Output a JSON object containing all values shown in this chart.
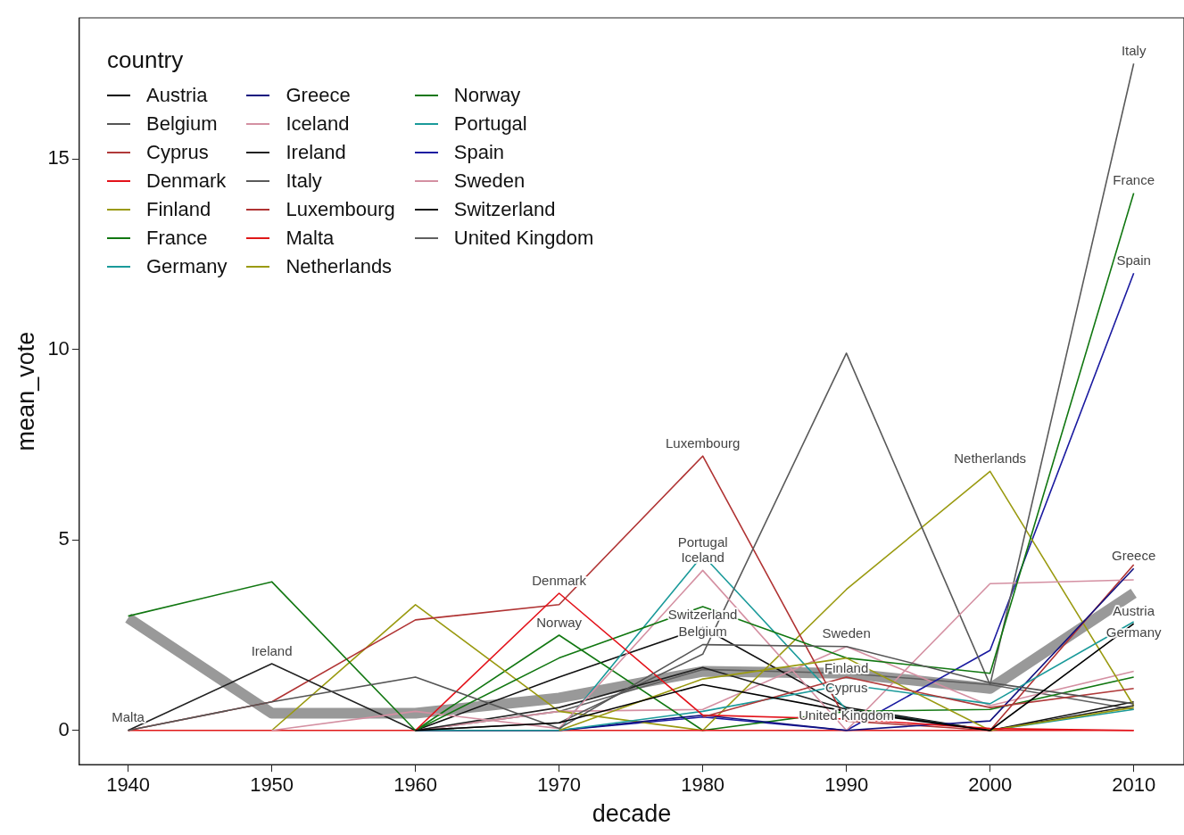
{
  "chart_data": {
    "type": "line",
    "xlabel": "decade",
    "ylabel": "mean_vote",
    "legend_title": "country",
    "legend": "top left",
    "grid": false,
    "marker": "none",
    "line_style": "solid",
    "x": [
      1940,
      1950,
      1960,
      1970,
      1980,
      1990,
      2000,
      2010
    ],
    "xlim": [
      1936.6,
      2013.5
    ],
    "xticks": [
      1940,
      1950,
      1960,
      1970,
      1980,
      1990,
      2000,
      2010
    ],
    "ylim": [
      -0.9,
      18.7
    ],
    "yticks": [
      0,
      5,
      10,
      15
    ],
    "series": [
      {
        "name": "Austria",
        "color": "#000000",
        "values": [
          null,
          null,
          0,
          0.2,
          1.2,
          0.5,
          0,
          2.8
        ]
      },
      {
        "name": "Belgium",
        "color": "#555555",
        "values": [
          0,
          0.75,
          1.4,
          0.05,
          2.25,
          2.2,
          1.25,
          0.7
        ]
      },
      {
        "name": "Cyprus",
        "color": "#b03a3a",
        "values": [
          null,
          null,
          null,
          null,
          0.35,
          1.4,
          0.6,
          1.1
        ]
      },
      {
        "name": "Denmark",
        "color": "#e3121a",
        "values": [
          null,
          null,
          0,
          3.6,
          0.4,
          0.3,
          0.05,
          0
        ]
      },
      {
        "name": "Finland",
        "color": "#9a9a10",
        "values": [
          null,
          null,
          null,
          0,
          1.35,
          1.9,
          0,
          0.6
        ]
      },
      {
        "name": "France",
        "color": "#117711",
        "values": [
          3,
          3.9,
          0,
          1.9,
          3.25,
          1.9,
          1.5,
          14.1
        ]
      },
      {
        "name": "Germany",
        "color": "#1a9a9a",
        "values": [
          null,
          null,
          0,
          0,
          0.5,
          1.2,
          0.7,
          2.85
        ]
      },
      {
        "name": "Greece",
        "color": "#10107f",
        "values": [
          null,
          null,
          0,
          0,
          0.4,
          0,
          0.25,
          4.25
        ]
      },
      {
        "name": "Iceland",
        "color": "#d490a2",
        "values": [
          null,
          0,
          0.5,
          0.05,
          4.2,
          0,
          3.85,
          3.95
        ]
      },
      {
        "name": "Ireland",
        "color": "#222222",
        "values": [
          0,
          1.75,
          0,
          0.6,
          1.65,
          0.55,
          0,
          0.65
        ]
      },
      {
        "name": "Italy",
        "color": "#5a5a5a",
        "values": [
          null,
          null,
          0,
          0.2,
          2,
          9.9,
          1.2,
          17.5
        ]
      },
      {
        "name": "Luxembourg",
        "color": "#b03333",
        "values": [
          0,
          0.75,
          2.9,
          3.3,
          7.2,
          0.25,
          0,
          4.35
        ]
      },
      {
        "name": "Malta",
        "color": "#e01818",
        "values": [
          0,
          0,
          0,
          0,
          0,
          0,
          0,
          0
        ]
      },
      {
        "name": "Netherlands",
        "color": "#9a9a10",
        "values": [
          null,
          0,
          3.3,
          0.5,
          0,
          3.7,
          6.8,
          0.65
        ]
      },
      {
        "name": "Norway",
        "color": "#117711",
        "values": [
          null,
          null,
          0,
          2.5,
          0,
          0.5,
          0.55,
          1.4
        ]
      },
      {
        "name": "Portugal",
        "color": "#1a9a9a",
        "values": [
          null,
          null,
          null,
          0,
          4.6,
          0.55,
          0,
          0.55
        ]
      },
      {
        "name": "Spain",
        "color": "#1a1aa0",
        "values": [
          null,
          null,
          0,
          0,
          0.35,
          0,
          2.1,
          12
        ]
      },
      {
        "name": "Sweden",
        "color": "#d490a2",
        "values": [
          null,
          null,
          0,
          0.5,
          0.55,
          2.2,
          0.65,
          1.55
        ]
      },
      {
        "name": "Switzerland",
        "color": "#111111",
        "values": [
          null,
          null,
          0,
          1.4,
          2.7,
          0.6,
          0,
          0.75
        ]
      },
      {
        "name": "United Kingdom",
        "color": "#606060",
        "values": [
          null,
          null,
          0,
          0.5,
          1.6,
          1.5,
          1.2,
          0.55
        ]
      },
      {
        "color": "#999999",
        "values": [
          2.95,
          0.45,
          0.45,
          0.85,
          1.55,
          1.5,
          1.1,
          3.6
        ]
      }
    ],
    "annotations": [
      {
        "text": "Italy",
        "x": 2010,
        "y": 17.5
      },
      {
        "text": "France",
        "x": 2010,
        "y": 14.1
      },
      {
        "text": "Spain",
        "x": 2010,
        "y": 12
      },
      {
        "text": "Greece",
        "x": 2010,
        "y": 4.25
      },
      {
        "text": "Austria",
        "x": 2010,
        "y": 2.8
      },
      {
        "text": "Germany",
        "x": 2010,
        "y": 2.85
      },
      {
        "text": "Netherlands",
        "x": 2000,
        "y": 6.8
      },
      {
        "text": "Luxembourg",
        "x": 1980,
        "y": 7.2
      },
      {
        "text": "Portugal",
        "x": 1980,
        "y": 4.6
      },
      {
        "text": "Iceland",
        "x": 1980,
        "y": 4.2
      },
      {
        "text": "Switzerland",
        "x": 1980,
        "y": 2.7
      },
      {
        "text": "Belgium",
        "x": 1980,
        "y": 2.25
      },
      {
        "text": "Denmark",
        "x": 1970,
        "y": 3.6
      },
      {
        "text": "Norway",
        "x": 1970,
        "y": 2.5
      },
      {
        "text": "Ireland",
        "x": 1950,
        "y": 1.75
      },
      {
        "text": "Malta",
        "x": 1940,
        "y": 0
      },
      {
        "text": "Sweden",
        "x": 1990,
        "y": 2.2
      },
      {
        "text": "Finland",
        "x": 1990,
        "y": 1.9
      },
      {
        "text": "Cyprus",
        "x": 1990,
        "y": 1.4
      },
      {
        "text": "United Kingdom",
        "x": 1990,
        "y": 1.5
      }
    ]
  }
}
